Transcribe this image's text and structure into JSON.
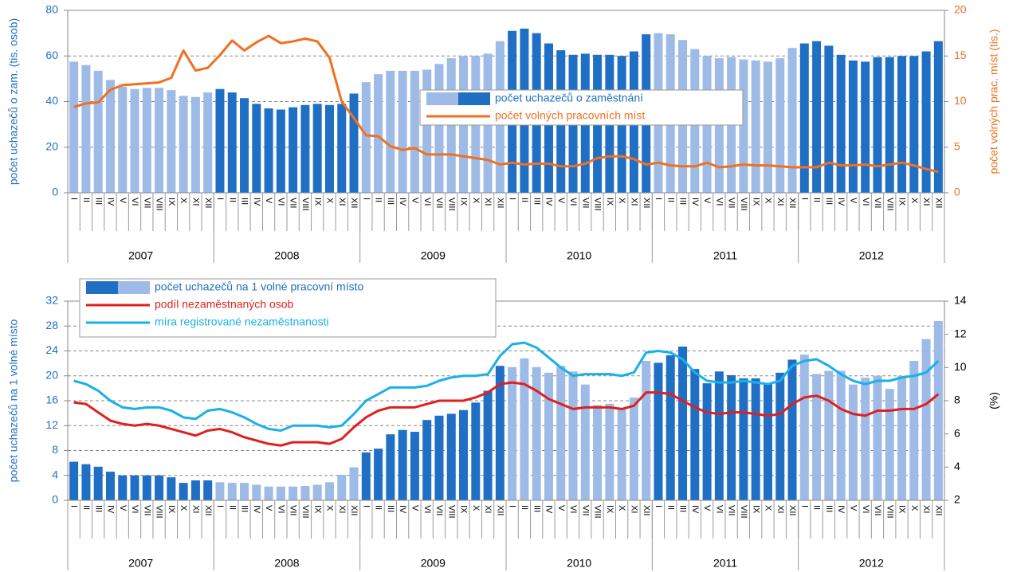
{
  "chart_data": [
    {
      "type": "bar_line",
      "categories": [
        "I",
        "II",
        "III",
        "IV",
        "V",
        "VI",
        "VII",
        "VIII",
        "IX",
        "X",
        "XI",
        "XII",
        "I",
        "II",
        "III",
        "IV",
        "V",
        "VI",
        "VII",
        "VIII",
        "IX",
        "X",
        "XI",
        "XII",
        "I",
        "II",
        "III",
        "IV",
        "V",
        "VI",
        "VII",
        "VIII",
        "IX",
        "X",
        "XI",
        "XII",
        "I",
        "II",
        "III",
        "IV",
        "V",
        "VI",
        "VII",
        "VIII",
        "IX",
        "X",
        "XI",
        "XII",
        "I",
        "II",
        "III",
        "IV",
        "V",
        "VI",
        "VII",
        "VIII",
        "IX",
        "X",
        "XI",
        "XII",
        "I",
        "II",
        "III",
        "IV",
        "V",
        "VI",
        "VII",
        "VIII",
        "IX",
        "X",
        "XI",
        "XII"
      ],
      "years": [
        "2007",
        "2008",
        "2009",
        "2010",
        "2011",
        "2012"
      ],
      "ylabel": "počet uchazečů o zam. (tis. osob)",
      "y2label": "počet volných prac. míst (tis.)",
      "ylim": [
        0,
        80
      ],
      "yticks": [
        0,
        20,
        40,
        60,
        80
      ],
      "y2lim": [
        0,
        20
      ],
      "y2ticks": [
        0,
        5,
        10,
        15,
        20
      ],
      "grid": true,
      "series": [
        {
          "name": "počet uchazečů o zaměstnání",
          "type": "bar",
          "color": [
            "#9dbbe6",
            "#1f6fc5"
          ],
          "values": [
            57.5,
            56,
            53.5,
            49.5,
            46.5,
            45.5,
            46,
            46,
            45,
            42.5,
            42,
            44,
            45.5,
            44,
            41.5,
            39,
            37,
            36.5,
            37.5,
            38.5,
            39,
            38.5,
            39,
            43.5,
            48.5,
            52,
            53.5,
            53.5,
            53.5,
            54,
            56.5,
            59,
            60,
            60,
            61,
            66.5,
            71,
            72,
            70,
            65.5,
            62.5,
            60.5,
            61,
            60.5,
            60.5,
            60,
            62,
            69.5,
            70,
            69.5,
            67,
            63,
            60,
            59,
            59.5,
            58.5,
            58,
            57.5,
            59,
            63.5,
            65.5,
            66.5,
            64.5,
            60.5,
            58,
            57.5,
            59.5,
            59.5,
            60,
            60,
            62,
            66.5
          ]
        },
        {
          "name": "počet volných pracovních míst",
          "type": "line",
          "axis": "y2",
          "color": "#f07020",
          "values": [
            9.4,
            9.8,
            9.9,
            11.3,
            11.8,
            11.9,
            12.0,
            12.1,
            12.6,
            15.6,
            13.4,
            13.7,
            15.1,
            16.7,
            15.6,
            16.5,
            17.2,
            16.4,
            16.6,
            16.9,
            16.6,
            14.8,
            10.0,
            8.2,
            6.3,
            6.2,
            5.1,
            4.7,
            4.9,
            4.2,
            4.2,
            4.2,
            4.0,
            3.8,
            3.6,
            3.1,
            3.3,
            3.1,
            3.2,
            3.2,
            2.9,
            2.9,
            3.2,
            3.8,
            4.0,
            4.0,
            3.7,
            3.1,
            3.3,
            3.0,
            2.9,
            2.9,
            3.3,
            2.8,
            2.9,
            3.1,
            3.0,
            3.0,
            2.9,
            2.8,
            2.8,
            2.8,
            3.3,
            3.0,
            3.0,
            3.1,
            2.9,
            3.1,
            3.3,
            3.0,
            2.6,
            2.3
          ]
        }
      ]
    },
    {
      "type": "bar_line",
      "categories": [
        "I",
        "II",
        "III",
        "IV",
        "V",
        "VI",
        "VII",
        "VIII",
        "IX",
        "X",
        "XI",
        "XII",
        "I",
        "II",
        "III",
        "IV",
        "V",
        "VI",
        "VII",
        "VIII",
        "IX",
        "X",
        "XI",
        "XII",
        "I",
        "II",
        "III",
        "IV",
        "V",
        "VI",
        "VII",
        "VIII",
        "IX",
        "X",
        "XI",
        "XII",
        "I",
        "II",
        "III",
        "IV",
        "V",
        "VI",
        "VII",
        "VIII",
        "IX",
        "X",
        "XI",
        "XII",
        "I",
        "II",
        "III",
        "IV",
        "V",
        "VI",
        "VII",
        "VIII",
        "IX",
        "X",
        "XI",
        "XII",
        "I",
        "II",
        "III",
        "IV",
        "V",
        "VI",
        "VII",
        "VIII",
        "IX",
        "X",
        "XI",
        "XII"
      ],
      "years": [
        "2007",
        "2008",
        "2009",
        "2010",
        "2011",
        "2012"
      ],
      "ylabel": "počet uchazečů na 1 volné místo",
      "y2label": "(%)",
      "ylim": [
        0,
        32
      ],
      "yticks": [
        0,
        4,
        8,
        12,
        16,
        20,
        24,
        28,
        32
      ],
      "y2lim": [
        2,
        14
      ],
      "y2ticks": [
        2,
        4,
        6,
        8,
        10,
        12,
        14
      ],
      "grid": true,
      "series": [
        {
          "name": "počet uchazečů na 1 volné pracovní místo",
          "type": "bar",
          "color": [
            "#1f6fc5",
            "#9dbbe6"
          ],
          "values": [
            6.2,
            5.8,
            5.4,
            4.6,
            4.0,
            4.0,
            4.0,
            4.0,
            3.7,
            2.8,
            3.2,
            3.2,
            2.9,
            2.8,
            2.8,
            2.5,
            2.2,
            2.2,
            2.2,
            2.3,
            2.5,
            2.9,
            4.1,
            5.3,
            7.7,
            8.3,
            10.6,
            11.3,
            11.0,
            12.9,
            13.6,
            13.9,
            14.5,
            15.7,
            17.6,
            21.6,
            21.4,
            22.8,
            21.4,
            20.5,
            21.6,
            20.7,
            18.6,
            15.3,
            15.5,
            14.8,
            16.5,
            22.4,
            22.1,
            23.3,
            24.7,
            21.1,
            18.8,
            20.7,
            20.1,
            19.6,
            19.6,
            18.7,
            20.5,
            22.6,
            23.4,
            20.3,
            20.8,
            20.8,
            18.6,
            19.7,
            20.0,
            17.9,
            20.0,
            22.4,
            25.9,
            28.8
          ]
        },
        {
          "name": "podíl  nezaměstnaných  osob",
          "type": "line",
          "axis": "y2",
          "color": "#e02020",
          "values": [
            7.9,
            7.8,
            7.3,
            6.8,
            6.6,
            6.5,
            6.6,
            6.5,
            6.3,
            6.1,
            5.9,
            6.2,
            6.3,
            6.1,
            5.8,
            5.6,
            5.4,
            5.3,
            5.5,
            5.5,
            5.5,
            5.4,
            5.7,
            6.4,
            7.0,
            7.4,
            7.6,
            7.6,
            7.6,
            7.8,
            8.0,
            8.0,
            8.0,
            8.2,
            8.5,
            9.0,
            9.1,
            9.0,
            8.6,
            8.1,
            7.8,
            7.5,
            7.6,
            7.6,
            7.6,
            7.5,
            7.7,
            8.5,
            8.5,
            8.4,
            8.0,
            7.6,
            7.3,
            7.2,
            7.3,
            7.3,
            7.2,
            7.1,
            7.2,
            7.8,
            8.2,
            8.3,
            8.0,
            7.5,
            7.2,
            7.1,
            7.4,
            7.4,
            7.5,
            7.5,
            7.8,
            8.4
          ]
        },
        {
          "name": "míra registrované nezaměstnanosti",
          "type": "line",
          "axis": "y2",
          "color": "#1ab0e8",
          "values": [
            9.2,
            9.0,
            8.6,
            8.0,
            7.6,
            7.5,
            7.6,
            7.6,
            7.4,
            7.0,
            6.9,
            7.4,
            7.5,
            7.3,
            7.0,
            6.6,
            6.3,
            6.2,
            6.5,
            6.5,
            6.5,
            6.4,
            6.5,
            7.2,
            8.0,
            8.4,
            8.8,
            8.8,
            8.8,
            8.9,
            9.2,
            9.4,
            9.5,
            9.5,
            9.6,
            10.7,
            11.4,
            11.5,
            11.2,
            10.6,
            10.0,
            9.5,
            9.6,
            9.6,
            9.6,
            9.5,
            9.7,
            10.9,
            11.0,
            10.9,
            10.5,
            9.7,
            9.2,
            9.1,
            9.1,
            9.2,
            9.1,
            9.0,
            9.2,
            10.1,
            10.4,
            10.5,
            10.1,
            9.6,
            9.2,
            9.0,
            9.2,
            9.2,
            9.4,
            9.5,
            9.7,
            10.4
          ]
        }
      ]
    }
  ]
}
